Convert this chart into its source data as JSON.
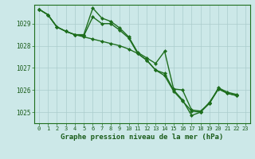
{
  "xlabel": "Graphe pression niveau de la mer (hPa)",
  "background_color": "#cce8e8",
  "grid_color": "#aacccc",
  "line_color": "#1e6e1e",
  "marker": "D",
  "markersize": 2,
  "linewidth": 1,
  "ylim": [
    1024.5,
    1029.85
  ],
  "xlim": [
    -0.5,
    23.5
  ],
  "yticks": [
    1025,
    1026,
    1027,
    1028,
    1029
  ],
  "xticks": [
    0,
    1,
    2,
    3,
    4,
    5,
    6,
    7,
    8,
    9,
    10,
    11,
    12,
    13,
    14,
    15,
    16,
    17,
    18,
    19,
    20,
    21,
    22,
    23
  ],
  "line1_x": [
    0,
    1,
    2,
    3,
    4,
    5,
    6,
    7,
    8,
    9,
    10,
    11,
    12,
    13,
    14,
    15,
    16,
    17,
    18,
    19,
    20,
    21,
    22
  ],
  "line1_y": [
    1029.65,
    1029.4,
    1028.85,
    1028.65,
    1028.5,
    1028.5,
    1029.7,
    1029.25,
    1029.1,
    1028.8,
    1028.4,
    1027.7,
    1027.45,
    1027.2,
    1027.75,
    1026.05,
    1026.0,
    1025.1,
    1025.05,
    1025.4,
    1026.1,
    1025.9,
    1025.8
  ],
  "line2_x": [
    0,
    1,
    2,
    3,
    4,
    5,
    6,
    7,
    8,
    9,
    10,
    11,
    12,
    13,
    14,
    15,
    16,
    17,
    18,
    19,
    20,
    21,
    22
  ],
  "line2_y": [
    1029.65,
    1029.4,
    1028.85,
    1028.65,
    1028.5,
    1028.45,
    1029.3,
    1029.0,
    1029.0,
    1028.7,
    1028.35,
    1027.65,
    1027.35,
    1026.9,
    1026.75,
    1026.0,
    1025.55,
    1024.85,
    1025.0,
    1025.4,
    1026.05,
    1025.85,
    1025.75
  ],
  "line3_x": [
    0,
    1,
    2,
    3,
    4,
    5,
    6,
    7,
    8,
    9,
    10,
    11,
    12,
    13,
    14,
    15,
    16,
    17,
    18,
    19,
    20,
    21,
    22
  ],
  "line3_y": [
    1029.65,
    1029.4,
    1028.85,
    1028.65,
    1028.5,
    1028.4,
    1028.3,
    1028.2,
    1028.1,
    1028.0,
    1027.85,
    1027.65,
    1027.35,
    1026.9,
    1026.65,
    1025.95,
    1025.5,
    1025.05,
    1025.0,
    1025.45,
    1026.05,
    1025.85,
    1025.75
  ]
}
